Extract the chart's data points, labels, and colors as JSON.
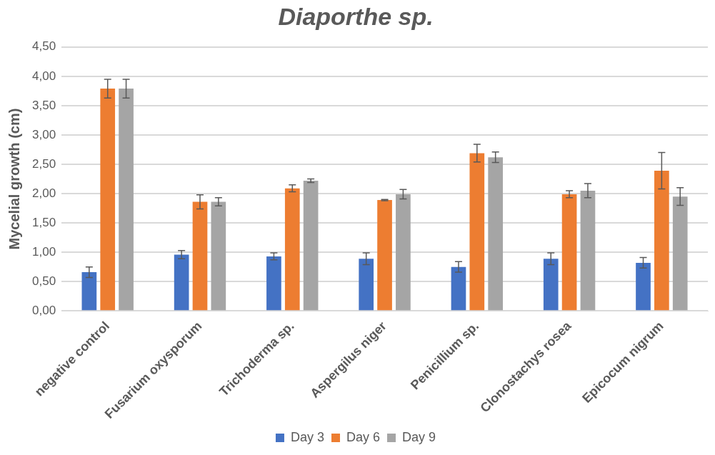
{
  "chart_data": {
    "type": "bar",
    "title": "Diaporthe sp.",
    "ylabel": "Mycelial growth (cm)",
    "categories": [
      "negative control",
      "Fusarium oxysporum",
      "Trichoderma sp.",
      "Aspergilus niger",
      "Penicillium sp.",
      "Clonostachys rosea",
      "Epicocum nigrum"
    ],
    "series": [
      {
        "name": "Day 3",
        "color": "#4472c4",
        "values": [
          0.66,
          0.96,
          0.93,
          0.89,
          0.75,
          0.89,
          0.82
        ],
        "errors": [
          0.09,
          0.07,
          0.06,
          0.1,
          0.09,
          0.1,
          0.09
        ]
      },
      {
        "name": "Day 6",
        "color": "#ed7d31",
        "values": [
          3.79,
          1.86,
          2.09,
          1.89,
          2.69,
          1.99,
          2.39
        ],
        "errors": [
          0.16,
          0.12,
          0.06,
          0.01,
          0.15,
          0.06,
          0.31
        ]
      },
      {
        "name": "Day 9",
        "color": "#a5a5a5",
        "values": [
          3.79,
          1.86,
          2.22,
          1.99,
          2.62,
          2.05,
          1.95
        ],
        "errors": [
          0.16,
          0.07,
          0.03,
          0.08,
          0.09,
          0.12,
          0.15
        ]
      }
    ],
    "ylim": [
      0,
      4.5
    ],
    "yticks": [
      {
        "value": 0,
        "label": "0,00"
      },
      {
        "value": 0.5,
        "label": "0,50"
      },
      {
        "value": 1,
        "label": "1,00"
      },
      {
        "value": 1.5,
        "label": "1,50"
      },
      {
        "value": 2,
        "label": "2,00"
      },
      {
        "value": 2.5,
        "label": "2,50"
      },
      {
        "value": 3,
        "label": "3,00"
      },
      {
        "value": 3.5,
        "label": "3,50"
      },
      {
        "value": 4,
        "label": "4,00"
      },
      {
        "value": 4.5,
        "label": "4,50"
      }
    ],
    "grid": "y",
    "legend": "bottom"
  }
}
